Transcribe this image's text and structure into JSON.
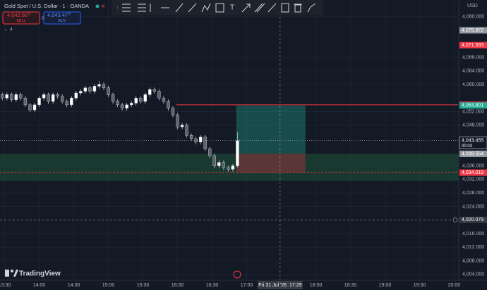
{
  "header": {
    "symbol": "Gold Spot / U.S. Dollar · 1 · OANDA",
    "sell_price": "4,042.66",
    "sell_pip": "9",
    "sell": "SELL",
    "spread": "81.0",
    "buy_price": "4,043.47",
    "buy_pip": "9",
    "buy": "BUY",
    "indicators": "4"
  },
  "currency": "USD",
  "logo": "TradingView",
  "chart_data": {
    "type": "candlestick",
    "x": [
      808,
      812,
      816,
      820,
      824,
      828,
      832,
      836,
      840,
      844,
      848,
      852,
      856,
      860,
      864,
      868,
      872,
      876,
      880,
      884,
      888,
      892,
      896,
      900,
      904,
      908,
      912,
      916,
      920,
      924,
      928,
      932,
      936,
      940,
      944,
      948,
      952,
      956,
      960,
      964,
      968,
      972,
      976,
      980,
      984,
      988,
      992,
      996,
      1000,
      1004,
      1008,
      1012
    ],
    "open": [
      4057,
      4056,
      4057,
      4055.5,
      4057,
      4056,
      4054,
      4052.5,
      4054,
      4056,
      4057,
      4055,
      4057,
      4056.5,
      4055,
      4054,
      4056,
      4057.5,
      4058,
      4059,
      4058,
      4059.5,
      4060,
      4059,
      4057,
      4055,
      4054,
      4053,
      4054,
      4054.5,
      4056,
      4055,
      4057,
      4058.5,
      4058,
      4056,
      4055,
      4053,
      4051,
      4047.5,
      4048,
      4045,
      4044,
      4043,
      4044.5,
      4041,
      4039,
      4036,
      4037,
      4035.5,
      4035,
      4036
    ],
    "high": [
      4057.6,
      4057.6,
      4057.6,
      4057.6,
      4057.6,
      4056.6,
      4054.6,
      4054.6,
      4056.6,
      4057.6,
      4057.6,
      4057.6,
      4057.6,
      4057.1,
      4055.6,
      4056.6,
      4058.1,
      4058.6,
      4059.6,
      4059.6,
      4060.1,
      4061,
      4060.6,
      4059.6,
      4057.6,
      4055.6,
      4054.6,
      4054.6,
      4055.1,
      4056.6,
      4056.6,
      4057.6,
      4059.1,
      4059.1,
      4058.6,
      4056.6,
      4055.6,
      4053.6,
      4051.6,
      4048.6,
      4048.6,
      4045.6,
      4044.6,
      4045.1,
      4045.1,
      4041.6,
      4039.6,
      4037.6,
      4037.6,
      4036.1,
      4036.6,
      4046
    ],
    "low": [
      4055.3,
      4055.3,
      4054.8,
      4054.8,
      4055.3,
      4053.3,
      4051.8,
      4051.8,
      4053.3,
      4055.3,
      4054.3,
      4054.3,
      4055.8,
      4054.3,
      4053.3,
      4053.3,
      4055.3,
      4056.8,
      4057.3,
      4057.3,
      4057.3,
      4058.8,
      4058.3,
      4056.3,
      4054.3,
      4053.3,
      4052.3,
      4052.3,
      4053.3,
      4053.8,
      4054.3,
      4054.3,
      4056.3,
      4057.3,
      4055.3,
      4054.3,
      4052.3,
      4050.3,
      4046.8,
      4046.8,
      4044.3,
      4043.3,
      4042.3,
      4042.3,
      4040.3,
      4038.3,
      4035.3,
      4035.3,
      4034.8,
      4034.3,
      4034.3,
      4035.5
    ],
    "close": [
      4056,
      4057,
      4055.5,
      4057,
      4056,
      4054,
      4052.5,
      4054,
      4056,
      4057,
      4055,
      4057,
      4056.5,
      4055,
      4054,
      4056,
      4057.5,
      4058,
      4059,
      4058,
      4059.5,
      4060,
      4059,
      4057,
      4055,
      4054,
      4053,
      4054,
      4054.5,
      4056,
      4055,
      4057,
      4058.5,
      4058,
      4056,
      4055,
      4053,
      4051,
      4047.5,
      4048,
      4045,
      4044,
      4043,
      4044.5,
      4041,
      4039,
      4036,
      4037,
      4035.5,
      4035,
      4036,
      4043.455
    ],
    "up_color": "#ffffff",
    "down_color": "#5d606b",
    "xlim": [
      806,
      1204
    ],
    "xticks": [
      {
        "value": 810,
        "label": "13:30"
      },
      {
        "value": 840,
        "label": "14:00"
      },
      {
        "value": 870,
        "label": "14:30"
      },
      {
        "value": 900,
        "label": "15:00"
      },
      {
        "value": 930,
        "label": "15:30"
      },
      {
        "value": 960,
        "label": "16:00"
      },
      {
        "value": 990,
        "label": "16:30"
      },
      {
        "value": 1020,
        "label": "17:00"
      },
      {
        "value": 1080,
        "label": "18:00"
      },
      {
        "value": 1110,
        "label": "18:30"
      },
      {
        "value": 1140,
        "label": "19:00"
      },
      {
        "value": 1170,
        "label": "19:30"
      },
      {
        "value": 1200,
        "label": "20:00"
      }
    ],
    "ylim": [
      4002.3,
      4084.9
    ],
    "yticks": [
      {
        "value": 4080,
        "label": "4,080.000"
      },
      {
        "value": 4068,
        "label": "4,068.000"
      },
      {
        "value": 4064,
        "label": "4,064.000"
      },
      {
        "value": 4060,
        "label": "4,060.000"
      },
      {
        "value": 4052,
        "label": "4,052.000"
      },
      {
        "value": 4048,
        "label": "4,048.000"
      },
      {
        "value": 4036,
        "label": "4,036.000"
      },
      {
        "value": 4032,
        "label": "4,032.000"
      },
      {
        "value": 4028,
        "label": "4,028.000"
      },
      {
        "value": 4024,
        "label": "4,024.000"
      },
      {
        "value": 4016,
        "label": "4,016.000"
      },
      {
        "value": 4012,
        "label": "4,012.000"
      },
      {
        "value": 4008,
        "label": "4,008.000"
      },
      {
        "value": 4004,
        "label": "4,004.000"
      }
    ],
    "grid": true,
    "crosshair": {
      "x": {
        "value": 1049,
        "label": "Fri 31 Jul '26  17:29"
      },
      "y": {
        "value": 4020.079,
        "label": "4,020.079"
      }
    },
    "last_price": {
      "value": 4043.455,
      "label": "4,043.455",
      "countdown": "00:03"
    },
    "price_labels": [
      {
        "value": 4075.972,
        "label": "4,075.972",
        "color": "#9598a1"
      },
      {
        "value": 4071.593,
        "label": "4,071.593",
        "color": "#f23645"
      },
      {
        "value": 4054.006,
        "label": "4,054.006",
        "color": "#f23645"
      },
      {
        "value": 4053.801,
        "label": "4,053.801",
        "color": "#22ab94"
      },
      {
        "value": 4039.554,
        "label": "4,039.554",
        "color": "#9598a1"
      },
      {
        "value": 4034.019,
        "label": "4,034.019",
        "color": "#f23645"
      }
    ],
    "horizontal_ray": {
      "value": 4054.006,
      "start": 959,
      "color": "#f23645"
    },
    "zone": {
      "low": 4031.6,
      "high": 4039.554,
      "color": "#1c4434"
    },
    "stop_line": {
      "value": 4034.019,
      "color": "#f23645"
    },
    "position": {
      "start": 1011,
      "end": 1071,
      "entry": 4039.554,
      "target": 4053.801,
      "stop": 4034.019
    }
  }
}
